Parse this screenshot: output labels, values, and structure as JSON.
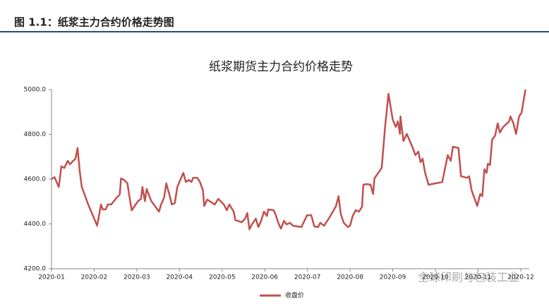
{
  "header": "图 1.1：纸浆主力合约价格走势图",
  "watermark": "全球印刷与包装工业",
  "chart_data": {
    "type": "line",
    "title": "纸浆期货主力合约价格走势",
    "xlim": [
      0,
      11.2
    ],
    "ylim": [
      4200,
      5000
    ],
    "xticks": [
      {
        "value": 0,
        "label": "2020-01"
      },
      {
        "value": 1,
        "label": "2020-02"
      },
      {
        "value": 2,
        "label": "2020-03"
      },
      {
        "value": 3,
        "label": "2020-04"
      },
      {
        "value": 4,
        "label": "2020-05"
      },
      {
        "value": 5,
        "label": "2020-06"
      },
      {
        "value": 6,
        "label": "2020-07"
      },
      {
        "value": 7,
        "label": "2020-08"
      },
      {
        "value": 8,
        "label": "2020-09"
      },
      {
        "value": 9,
        "label": "2020-10"
      },
      {
        "value": 10,
        "label": "2020-11"
      },
      {
        "value": 11,
        "label": "2020-12"
      }
    ],
    "yticks": [
      {
        "value": 4200,
        "label": "4200.0"
      },
      {
        "value": 4400,
        "label": "4400.0"
      },
      {
        "value": 4600,
        "label": "4600.0"
      },
      {
        "value": 4800,
        "label": "4800.0"
      },
      {
        "value": 5000,
        "label": "5000.0"
      }
    ],
    "legend": "bottom",
    "series": [
      {
        "name": "收盘价",
        "color": "#c0504d",
        "x": [
          0,
          0.07,
          0.17,
          0.23,
          0.3,
          0.38,
          0.43,
          0.51,
          0.56,
          0.61,
          0.66,
          0.71,
          0.86,
          1.07,
          1.16,
          1.2,
          1.27,
          1.32,
          1.4,
          1.53,
          1.6,
          1.63,
          1.7,
          1.78,
          1.83,
          1.88,
          2.03,
          2.1,
          2.13,
          2.19,
          2.23,
          2.34,
          2.46,
          2.52,
          2.57,
          2.64,
          2.69,
          2.76,
          2.82,
          2.89,
          2.95,
          3.02,
          3.09,
          3.15,
          3.22,
          3.28,
          3.32,
          3.42,
          3.48,
          3.55,
          3.58,
          3.65,
          3.83,
          3.91,
          4.04,
          4.11,
          4.17,
          4.27,
          4.31,
          4.46,
          4.54,
          4.59,
          4.64,
          4.7,
          4.79,
          4.85,
          4.92,
          4.98,
          5.05,
          5.08,
          5.21,
          5.26,
          5.33,
          5.38,
          5.45,
          5.51,
          5.59,
          5.66,
          5.86,
          5.99,
          6.09,
          6.16,
          6.25,
          6.3,
          6.39,
          6.53,
          6.67,
          6.73,
          6.78,
          6.85,
          6.95,
          7.0,
          7.06,
          7.13,
          7.21,
          7.28,
          7.31,
          7.39,
          7.48,
          7.54,
          7.57,
          7.74,
          7.82,
          7.9,
          8.0,
          8.07,
          8.12,
          8.17,
          8.18,
          8.25,
          8.33,
          8.4,
          8.47,
          8.53,
          8.6,
          8.65,
          8.7,
          8.76,
          8.84,
          9.16,
          9.29,
          9.36,
          9.41,
          9.54,
          9.6,
          9.74,
          9.79,
          9.85,
          9.98,
          10.05,
          10.1,
          10.15,
          10.2,
          10.23,
          10.28,
          10.33,
          10.4,
          10.46,
          10.51,
          10.59,
          10.73,
          10.76,
          10.83,
          10.89,
          10.96,
          11.02,
          11.11
        ],
        "values": [
          4600,
          4609,
          4565,
          4657,
          4650,
          4682,
          4666,
          4682,
          4691,
          4739,
          4638,
          4565,
          4487,
          4392,
          4487,
          4465,
          4465,
          4487,
          4487,
          4518,
          4531,
          4603,
          4597,
          4581,
          4518,
          4461,
          4502,
          4512,
          4565,
          4502,
          4556,
          4502,
          4471,
          4455,
          4487,
          4518,
          4581,
          4534,
          4487,
          4493,
          4565,
          4597,
          4628,
          4587,
          4597,
          4587,
          4606,
          4606,
          4587,
          4550,
          4480,
          4509,
          4487,
          4512,
          4487,
          4461,
          4487,
          4455,
          4417,
          4408,
          4424,
          4449,
          4376,
          4398,
          4424,
          4386,
          4417,
          4455,
          4436,
          4465,
          4461,
          4439,
          4398,
          4379,
          4414,
          4398,
          4405,
          4392,
          4386,
          4439,
          4439,
          4389,
          4386,
          4405,
          4392,
          4433,
          4480,
          4524,
          4446,
          4405,
          4386,
          4392,
          4436,
          4461,
          4455,
          4477,
          4575,
          4578,
          4575,
          4534,
          4603,
          4650,
          4833,
          4981,
          4865,
          4833,
          4858,
          4802,
          4880,
          4770,
          4802,
          4770,
          4739,
          4707,
          4723,
          4676,
          4691,
          4628,
          4575,
          4587,
          4707,
          4682,
          4745,
          4739,
          4613,
          4606,
          4613,
          4550,
          4480,
          4534,
          4524,
          4644,
          4628,
          4669,
          4663,
          4776,
          4795,
          4849,
          4808,
          4833,
          4858,
          4880,
          4849,
          4802,
          4880,
          4896,
          5000
        ]
      }
    ]
  }
}
